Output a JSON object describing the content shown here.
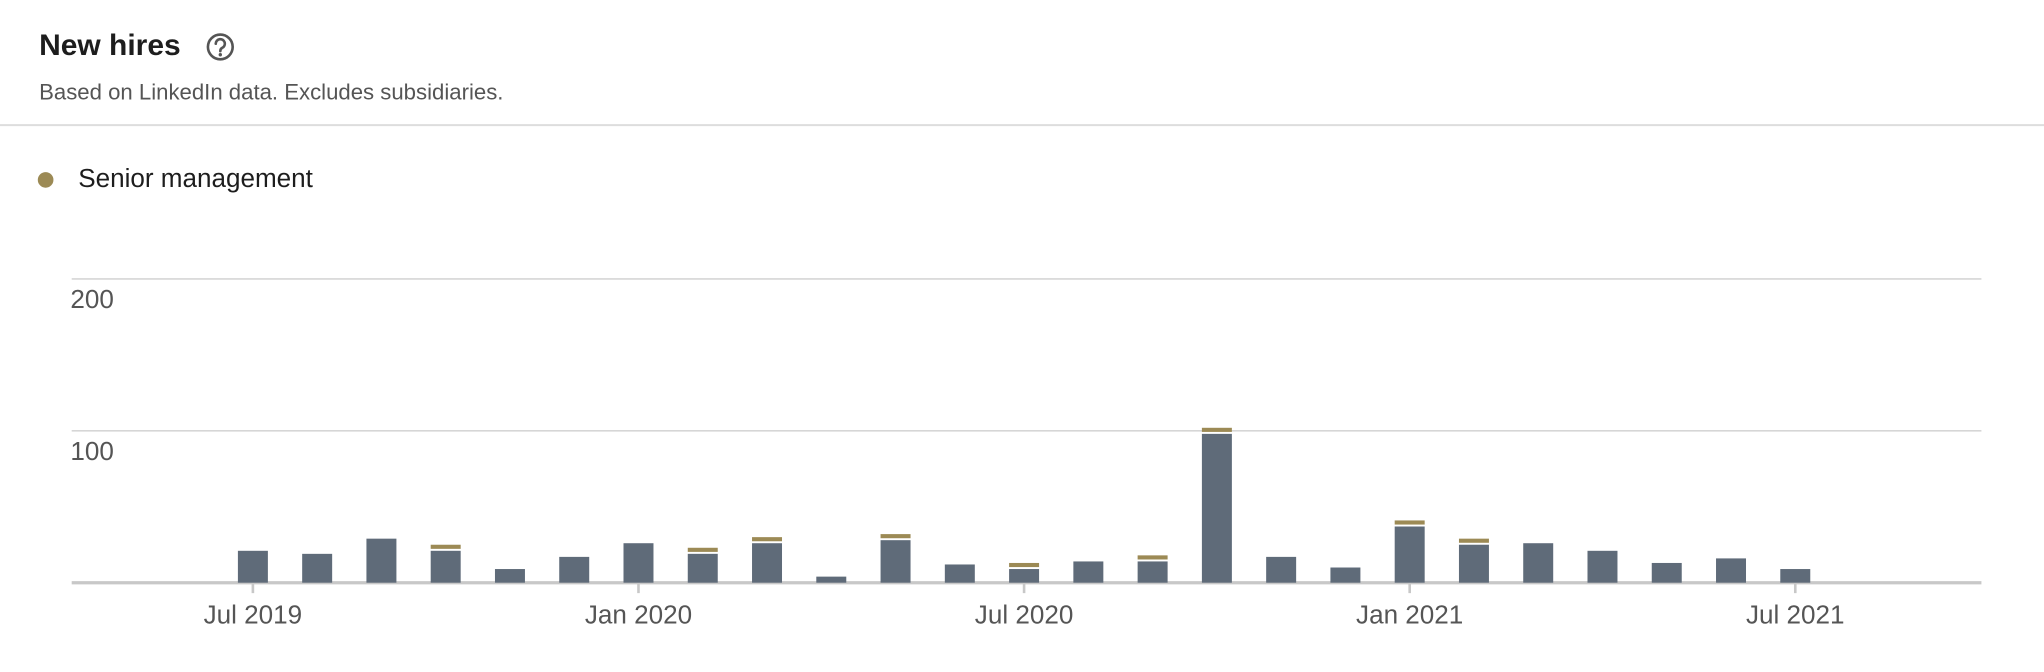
{
  "chart_data": {
    "type": "bar",
    "stacked": true,
    "title": "New hires",
    "subtitle": "Based on LinkedIn data. Excludes subsidiaries.",
    "categories": [
      "Jul 2019",
      null,
      null,
      null,
      null,
      null,
      "Jan 2020",
      null,
      null,
      null,
      null,
      null,
      "Jul 2020",
      null,
      null,
      null,
      null,
      null,
      "Jan 2021",
      null,
      null,
      null,
      null,
      null,
      "Jul 2021"
    ],
    "series": [
      {
        "color": "#5f6b79",
        "values": [
          21,
          19,
          29,
          21,
          9,
          17,
          26,
          19,
          26,
          4,
          28,
          12,
          9,
          14,
          14,
          98,
          17,
          10,
          37,
          25,
          26,
          21,
          13,
          16,
          9
        ]
      },
      {
        "name": "Senior management",
        "color": "#9c8a55",
        "values": [
          0,
          0,
          0,
          4,
          0,
          0,
          0,
          4,
          4,
          0,
          4,
          0,
          4,
          0,
          4,
          4,
          0,
          0,
          4,
          4,
          0,
          0,
          0,
          0,
          0
        ]
      }
    ],
    "ylim": [
      0,
      200
    ],
    "yticks": [
      100,
      200
    ],
    "grid": true
  }
}
